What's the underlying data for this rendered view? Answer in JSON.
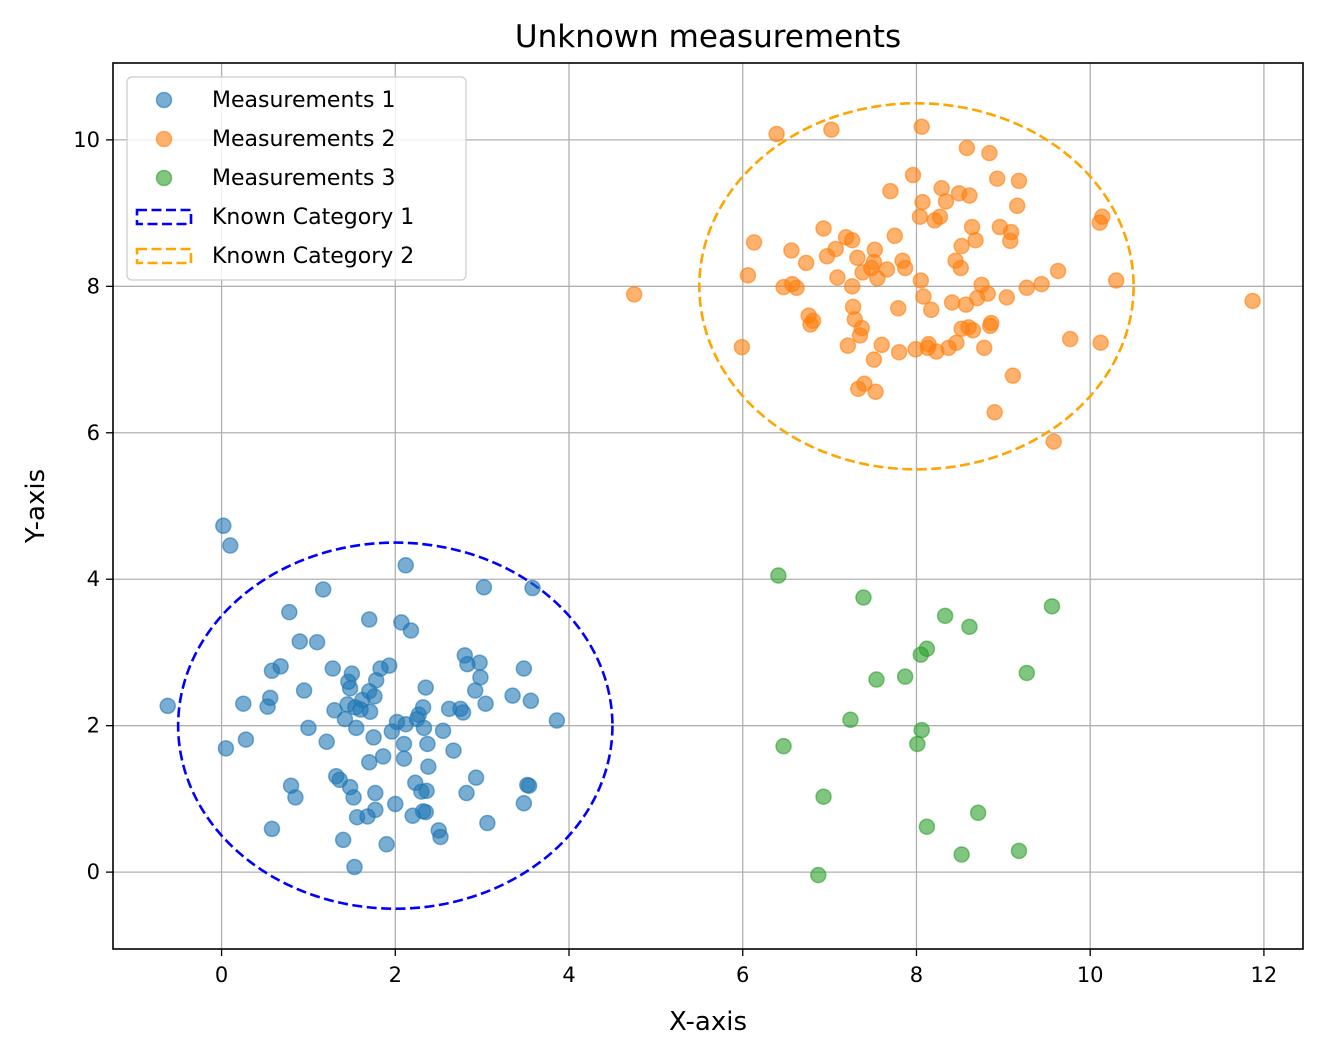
{
  "chart_data": {
    "type": "scatter",
    "title": "Unknown measurements",
    "xlabel": "X-axis",
    "ylabel": "Y-axis",
    "xlim": [
      -1.25,
      12.45
    ],
    "ylim": [
      -1.05,
      11.05
    ],
    "xticks": [
      0,
      2,
      4,
      6,
      8,
      10,
      12
    ],
    "yticks": [
      0,
      2,
      4,
      6,
      8,
      10
    ],
    "grid": true,
    "legend_position": "top-left",
    "series": [
      {
        "name": "Measurements 1",
        "color": "#1f77b4",
        "points": [
          [
            -0.62,
            2.27
          ],
          [
            0.02,
            4.73
          ],
          [
            0.1,
            4.46
          ],
          [
            0.05,
            1.69
          ],
          [
            0.25,
            2.3
          ],
          [
            0.28,
            1.81
          ],
          [
            0.53,
            2.26
          ],
          [
            0.56,
            2.38
          ],
          [
            0.58,
            2.75
          ],
          [
            0.58,
            0.59
          ],
          [
            0.68,
            2.81
          ],
          [
            0.78,
            3.55
          ],
          [
            0.8,
            1.18
          ],
          [
            0.85,
            1.02
          ],
          [
            0.9,
            3.15
          ],
          [
            0.95,
            2.48
          ],
          [
            1.0,
            1.97
          ],
          [
            1.1,
            3.14
          ],
          [
            1.17,
            3.86
          ],
          [
            1.21,
            1.78
          ],
          [
            1.28,
            2.78
          ],
          [
            1.3,
            2.21
          ],
          [
            1.32,
            1.31
          ],
          [
            1.36,
            1.26
          ],
          [
            1.4,
            0.44
          ],
          [
            1.42,
            2.09
          ],
          [
            1.45,
            2.29
          ],
          [
            1.46,
            2.6
          ],
          [
            1.48,
            1.16
          ],
          [
            1.48,
            2.51
          ],
          [
            1.5,
            2.71
          ],
          [
            1.52,
            1.02
          ],
          [
            1.53,
            0.07
          ],
          [
            1.54,
            2.25
          ],
          [
            1.55,
            1.97
          ],
          [
            1.56,
            0.75
          ],
          [
            1.6,
            2.22
          ],
          [
            1.62,
            2.35
          ],
          [
            1.68,
            0.76
          ],
          [
            1.7,
            2.47
          ],
          [
            1.7,
            3.45
          ],
          [
            1.7,
            1.5
          ],
          [
            1.71,
            2.19
          ],
          [
            1.75,
            1.84
          ],
          [
            1.77,
            1.08
          ],
          [
            1.76,
            2.4
          ],
          [
            1.77,
            0.85
          ],
          [
            1.78,
            2.62
          ],
          [
            1.83,
            2.78
          ],
          [
            1.86,
            1.58
          ],
          [
            1.9,
            0.38
          ],
          [
            1.93,
            2.82
          ],
          [
            1.96,
            1.92
          ],
          [
            2.0,
            0.93
          ],
          [
            2.02,
            2.05
          ],
          [
            2.07,
            3.41
          ],
          [
            2.1,
            1.75
          ],
          [
            2.1,
            1.55
          ],
          [
            2.12,
            4.19
          ],
          [
            2.12,
            2.02
          ],
          [
            2.18,
            3.3
          ],
          [
            2.2,
            0.77
          ],
          [
            2.23,
            1.22
          ],
          [
            2.25,
            2.09
          ],
          [
            2.27,
            2.15
          ],
          [
            2.3,
            1.1
          ],
          [
            2.32,
            0.83
          ],
          [
            2.32,
            2.25
          ],
          [
            2.33,
            1.97
          ],
          [
            2.35,
            0.82
          ],
          [
            2.35,
            2.52
          ],
          [
            2.36,
            1.11
          ],
          [
            2.37,
            1.75
          ],
          [
            2.38,
            1.44
          ],
          [
            2.5,
            0.57
          ],
          [
            2.52,
            0.48
          ],
          [
            2.55,
            1.93
          ],
          [
            2.62,
            2.23
          ],
          [
            2.67,
            1.66
          ],
          [
            2.75,
            2.23
          ],
          [
            2.78,
            2.18
          ],
          [
            2.8,
            2.96
          ],
          [
            2.82,
            1.08
          ],
          [
            2.83,
            2.84
          ],
          [
            2.92,
            2.48
          ],
          [
            2.93,
            1.29
          ],
          [
            2.97,
            2.86
          ],
          [
            2.98,
            2.66
          ],
          [
            3.02,
            3.89
          ],
          [
            3.04,
            2.3
          ],
          [
            3.06,
            0.67
          ],
          [
            3.35,
            2.41
          ],
          [
            3.48,
            2.78
          ],
          [
            3.48,
            0.94
          ],
          [
            3.52,
            1.19
          ],
          [
            3.54,
            1.18
          ],
          [
            3.56,
            2.34
          ],
          [
            3.58,
            3.88
          ],
          [
            3.86,
            2.07
          ]
        ]
      },
      {
        "name": "Measurements 2",
        "color": "#ff7f0e",
        "points": [
          [
            4.75,
            7.89
          ],
          [
            5.99,
            7.17
          ],
          [
            6.06,
            8.15
          ],
          [
            6.13,
            8.6
          ],
          [
            6.39,
            10.08
          ],
          [
            6.47,
            7.99
          ],
          [
            6.56,
            8.49
          ],
          [
            6.57,
            8.03
          ],
          [
            6.62,
            7.98
          ],
          [
            6.73,
            8.32
          ],
          [
            6.76,
            7.6
          ],
          [
            6.78,
            7.48
          ],
          [
            6.81,
            7.53
          ],
          [
            6.93,
            8.79
          ],
          [
            6.97,
            8.41
          ],
          [
            7.02,
            10.14
          ],
          [
            7.07,
            8.51
          ],
          [
            7.09,
            8.12
          ],
          [
            7.19,
            8.67
          ],
          [
            7.21,
            7.19
          ],
          [
            7.26,
            8.63
          ],
          [
            7.26,
            8.0
          ],
          [
            7.27,
            7.72
          ],
          [
            7.29,
            7.55
          ],
          [
            7.32,
            8.39
          ],
          [
            7.33,
            6.6
          ],
          [
            7.35,
            7.33
          ],
          [
            7.37,
            7.43
          ],
          [
            7.38,
            8.19
          ],
          [
            7.4,
            6.67
          ],
          [
            7.48,
            8.25
          ],
          [
            7.51,
            8.33
          ],
          [
            7.51,
            7.0
          ],
          [
            7.52,
            8.5
          ],
          [
            7.53,
            6.56
          ],
          [
            7.55,
            8.11
          ],
          [
            7.6,
            7.2
          ],
          [
            7.66,
            8.23
          ],
          [
            7.7,
            9.3
          ],
          [
            7.75,
            8.69
          ],
          [
            7.79,
            7.7
          ],
          [
            7.8,
            7.1
          ],
          [
            7.84,
            8.35
          ],
          [
            7.87,
            8.25
          ],
          [
            7.96,
            9.52
          ],
          [
            7.99,
            7.14
          ],
          [
            8.04,
            8.95
          ],
          [
            8.05,
            8.08
          ],
          [
            8.06,
            10.18
          ],
          [
            8.07,
            9.15
          ],
          [
            8.08,
            7.86
          ],
          [
            8.13,
            7.16
          ],
          [
            8.14,
            7.21
          ],
          [
            8.17,
            7.68
          ],
          [
            8.21,
            8.9
          ],
          [
            8.23,
            7.11
          ],
          [
            8.27,
            8.95
          ],
          [
            8.29,
            9.34
          ],
          [
            8.34,
            9.16
          ],
          [
            8.37,
            7.16
          ],
          [
            8.41,
            7.78
          ],
          [
            8.45,
            8.35
          ],
          [
            8.46,
            7.23
          ],
          [
            8.49,
            9.27
          ],
          [
            8.51,
            8.25
          ],
          [
            8.52,
            8.55
          ],
          [
            8.52,
            7.42
          ],
          [
            8.57,
            7.75
          ],
          [
            8.58,
            9.89
          ],
          [
            8.6,
            7.44
          ],
          [
            8.61,
            9.24
          ],
          [
            8.64,
            8.81
          ],
          [
            8.65,
            7.4
          ],
          [
            8.68,
            8.63
          ],
          [
            8.7,
            7.84
          ],
          [
            8.75,
            8.02
          ],
          [
            8.78,
            7.16
          ],
          [
            8.82,
            7.9
          ],
          [
            8.84,
            9.82
          ],
          [
            8.85,
            7.46
          ],
          [
            8.86,
            7.5
          ],
          [
            8.9,
            6.28
          ],
          [
            8.93,
            9.47
          ],
          [
            8.96,
            8.81
          ],
          [
            9.04,
            7.85
          ],
          [
            9.08,
            8.62
          ],
          [
            9.09,
            8.74
          ],
          [
            9.11,
            6.78
          ],
          [
            9.16,
            9.1
          ],
          [
            9.18,
            9.44
          ],
          [
            9.27,
            7.98
          ],
          [
            9.44,
            8.03
          ],
          [
            9.58,
            5.88
          ],
          [
            9.63,
            8.21
          ],
          [
            9.77,
            7.28
          ],
          [
            10.11,
            8.87
          ],
          [
            10.12,
            7.23
          ],
          [
            10.14,
            8.95
          ],
          [
            10.3,
            8.08
          ],
          [
            11.87,
            7.8
          ]
        ]
      },
      {
        "name": "Measurements 3",
        "color": "#2ca02c",
        "points": [
          [
            6.41,
            4.05
          ],
          [
            6.47,
            1.72
          ],
          [
            6.87,
            -0.04
          ],
          [
            6.93,
            1.03
          ],
          [
            7.24,
            2.08
          ],
          [
            7.39,
            3.75
          ],
          [
            7.54,
            2.63
          ],
          [
            7.87,
            2.67
          ],
          [
            8.01,
            1.75
          ],
          [
            8.05,
            2.97
          ],
          [
            8.06,
            1.94
          ],
          [
            8.12,
            3.05
          ],
          [
            8.12,
            0.62
          ],
          [
            8.33,
            3.5
          ],
          [
            8.52,
            0.24
          ],
          [
            8.61,
            3.35
          ],
          [
            8.71,
            0.81
          ],
          [
            9.18,
            0.29
          ],
          [
            9.27,
            2.72
          ],
          [
            9.56,
            3.63
          ]
        ]
      }
    ],
    "ellipses": [
      {
        "name": "Known Category 1",
        "center": [
          2,
          2
        ],
        "width": 5,
        "height": 5,
        "color": "#0000ff",
        "style": "dashed"
      },
      {
        "name": "Known Category 2",
        "center": [
          8,
          8
        ],
        "width": 5,
        "height": 5,
        "color": "#ffa500",
        "style": "dashed"
      }
    ]
  }
}
